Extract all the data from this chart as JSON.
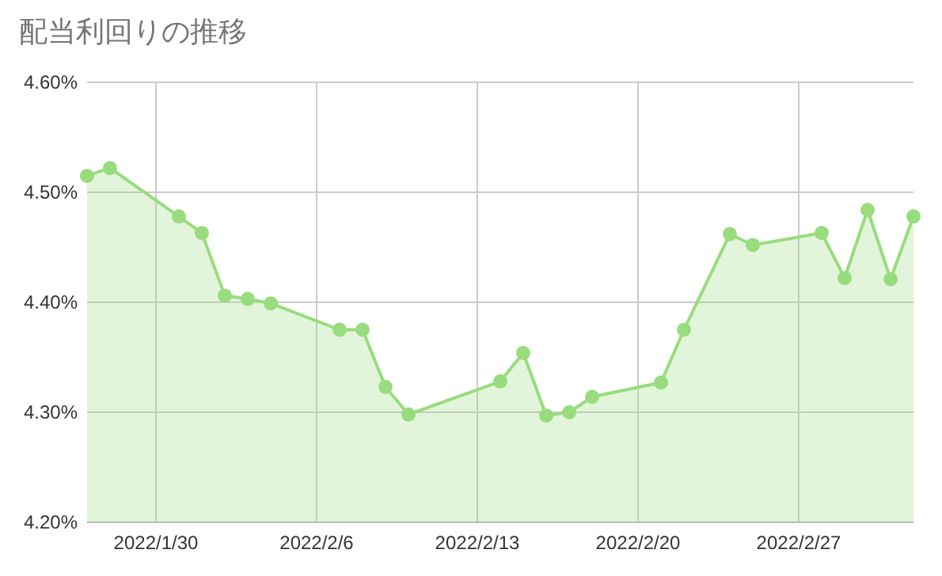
{
  "chart_data": {
    "type": "area",
    "title": "配当利回りの推移",
    "x": [
      "2022-01-27",
      "2022-01-28",
      "2022-01-31",
      "2022-02-01",
      "2022-02-02",
      "2022-02-03",
      "2022-02-04",
      "2022-02-07",
      "2022-02-08",
      "2022-02-09",
      "2022-02-10",
      "2022-02-14",
      "2022-02-15",
      "2022-02-16",
      "2022-02-17",
      "2022-02-18",
      "2022-02-21",
      "2022-02-22",
      "2022-02-24",
      "2022-02-25",
      "2022-02-28",
      "2022-03-01",
      "2022-03-02",
      "2022-03-03",
      "2022-03-04"
    ],
    "series": [
      {
        "color": "#98dc7e",
        "values": [
          4.515,
          4.522,
          4.478,
          4.463,
          4.406,
          4.403,
          4.399,
          4.375,
          4.375,
          4.323,
          4.298,
          4.328,
          4.354,
          4.297,
          4.3,
          4.314,
          4.327,
          4.375,
          4.462,
          4.452,
          4.463,
          4.422,
          4.484,
          4.421,
          4.478
        ]
      }
    ],
    "xlim": [
      "2022-01-27",
      "2022-03-04"
    ],
    "xticks": [
      {
        "value": "2022-01-30",
        "label": "2022/1/30"
      },
      {
        "value": "2022-02-06",
        "label": "2022/2/6"
      },
      {
        "value": "2022-02-13",
        "label": "2022/2/13"
      },
      {
        "value": "2022-02-20",
        "label": "2022/2/20"
      },
      {
        "value": "2022-02-27",
        "label": "2022/2/27"
      }
    ],
    "ylim": [
      4.2,
      4.6
    ],
    "yticks": [
      {
        "value": 4.2,
        "label": "4.20%"
      },
      {
        "value": 4.3,
        "label": "4.30%"
      },
      {
        "value": 4.4,
        "label": "4.40%"
      },
      {
        "value": 4.5,
        "label": "4.50%"
      },
      {
        "value": 4.6,
        "label": "4.60%"
      }
    ],
    "grid": true,
    "marker": "circle",
    "line_style": "solid"
  }
}
